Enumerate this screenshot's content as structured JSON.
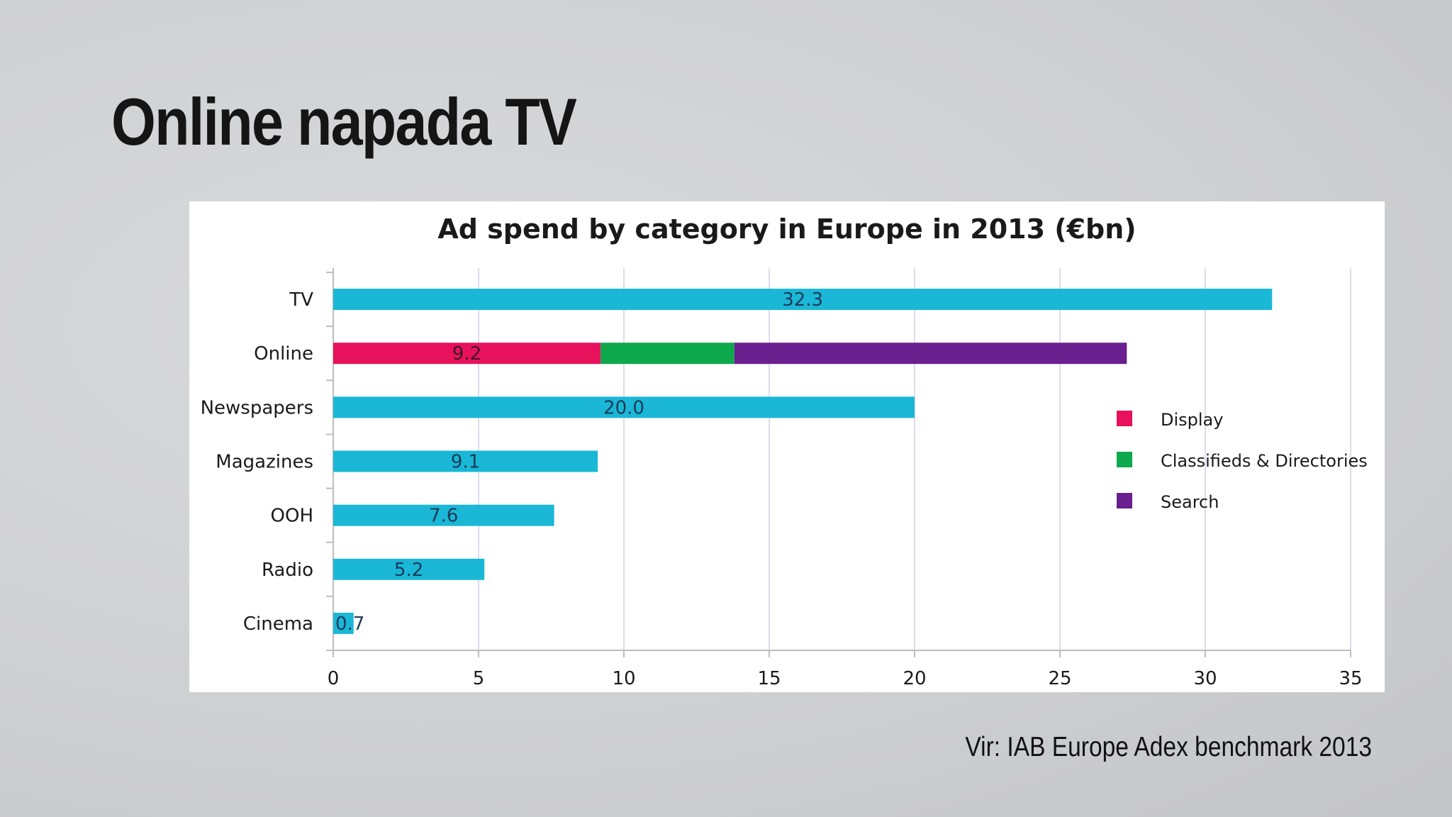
{
  "slide": {
    "title": "Online napada TV",
    "source": "Vir: IAB Europe Adex benchmark 2013"
  },
  "colors": {
    "bar": "#1ab7d6",
    "display": "#e8115b",
    "classifieds": "#0ea84d",
    "search": "#6a1f8e",
    "grid": "#dcdcec",
    "axis": "#bdbdbd"
  },
  "chart_data": {
    "type": "bar",
    "orientation": "horizontal",
    "stacked": true,
    "title": "Ad spend by category in Europe in 2013 (€bn)",
    "categories": [
      "TV",
      "Online",
      "Newspapers",
      "Magazines",
      "OOH",
      "Radio",
      "Cinema"
    ],
    "values": [
      32.3,
      null,
      20.0,
      9.1,
      7.6,
      5.2,
      0.7
    ],
    "value_labels": [
      "32.3",
      "9.2",
      "20.0",
      "9.1",
      "7.6",
      "5.2",
      "0.7"
    ],
    "online_breakdown": [
      {
        "name": "Display",
        "value": 9.2,
        "color": "#e8115b"
      },
      {
        "name": "Classifieds & Directories",
        "value": 4.6,
        "color": "#0ea84d"
      },
      {
        "name": "Search",
        "value": 13.5,
        "color": "#6a1f8e"
      }
    ],
    "xlim": [
      0,
      35
    ],
    "xticks": [
      0,
      5,
      10,
      15,
      20,
      25,
      30,
      35
    ],
    "grid": true,
    "legend": [
      "Display",
      "Classifieds & Directories",
      "Search"
    ],
    "legend_position": "right"
  }
}
